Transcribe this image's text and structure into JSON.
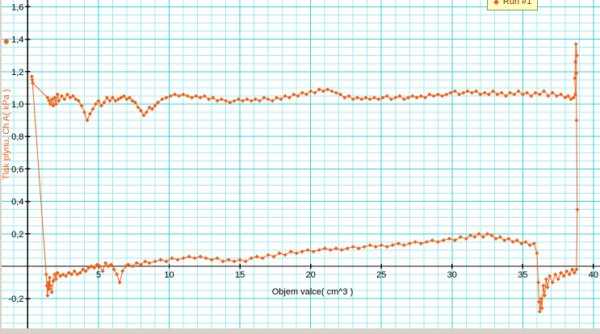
{
  "window": {
    "chrome_color": "#d6d2ca",
    "plot_bg": "#ffffff"
  },
  "icons": {
    "diamond": "◆"
  },
  "chart_data": {
    "type": "scatter",
    "title": "",
    "xlabel": "Objem valce( cm^3 )",
    "ylabel": "Tlak plynu, Ch A( kPa )",
    "xlim": [
      -1.85,
      40.46
    ],
    "ylim": [
      -0.383,
      1.642
    ],
    "grid": {
      "minor_color": "#9debee",
      "major_color": "#2bd2d8",
      "minor_x_step": 1,
      "major_x_step": 5,
      "minor_y_step": 0.05,
      "major_y_step": 0.2
    },
    "axis_color": "#000000",
    "tick_label_color": "#000000",
    "x_ticks": [
      {
        "v": 5,
        "label": "5"
      },
      {
        "v": 10,
        "label": "10"
      },
      {
        "v": 15,
        "label": "15"
      },
      {
        "v": 20,
        "label": "20"
      },
      {
        "v": 25,
        "label": "25"
      },
      {
        "v": 30,
        "label": "30"
      },
      {
        "v": 35,
        "label": "35"
      },
      {
        "v": 40,
        "label": "40"
      }
    ],
    "y_ticks": [
      {
        "v": 1.6,
        "label": "1,6"
      },
      {
        "v": 1.4,
        "label": "1,4"
      },
      {
        "v": 1.2,
        "label": "1,2"
      },
      {
        "v": 1.0,
        "label": "1,0"
      },
      {
        "v": 0.8,
        "label": "0,8"
      },
      {
        "v": 0.6,
        "label": "0,6"
      },
      {
        "v": 0.4,
        "label": "0,4"
      },
      {
        "v": 0.2,
        "label": "0,2"
      },
      {
        "v": -0.2,
        "label": "-0,2"
      }
    ],
    "legend": {
      "label": "Run #1",
      "bg": "#ffffc2",
      "border": "#8f8f55",
      "text_color": "#7a2e00"
    },
    "series": [
      {
        "name": "Run #1",
        "color": "#ee5f14",
        "marker": "diamond",
        "points": [
          [
            0.32,
            1.15
          ],
          [
            1.3,
            -0.05
          ],
          [
            1.35,
            -0.12
          ],
          [
            1.4,
            -0.18
          ],
          [
            1.45,
            -0.1
          ],
          [
            1.5,
            -0.14
          ],
          [
            1.55,
            -0.07
          ],
          [
            1.6,
            -0.12
          ],
          [
            1.7,
            -0.16
          ],
          [
            1.8,
            -0.09
          ],
          [
            1.9,
            -0.05
          ],
          [
            2.0,
            -0.08
          ],
          [
            2.1,
            -0.04
          ],
          [
            2.3,
            -0.06
          ],
          [
            2.5,
            -0.05
          ],
          [
            2.7,
            -0.06
          ],
          [
            2.9,
            -0.04
          ],
          [
            3.1,
            -0.05
          ],
          [
            3.3,
            -0.03
          ],
          [
            3.5,
            -0.05
          ],
          [
            3.7,
            -0.04
          ],
          [
            3.9,
            -0.02
          ],
          [
            4.1,
            -0.03
          ],
          [
            4.3,
            -0.01
          ],
          [
            4.5,
            0.0
          ],
          [
            4.7,
            -0.01
          ],
          [
            4.9,
            0.01
          ],
          [
            5.1,
            0.0
          ],
          [
            5.3,
            -0.03
          ],
          [
            5.5,
            0.02
          ],
          [
            5.7,
            0.0
          ],
          [
            5.9,
            0.01
          ],
          [
            6.1,
            -0.02
          ],
          [
            6.3,
            -0.05
          ],
          [
            6.5,
            -0.1
          ],
          [
            6.7,
            -0.03
          ],
          [
            6.9,
            0.0
          ],
          [
            7.1,
            0.01
          ],
          [
            7.4,
            0.0
          ],
          [
            7.7,
            0.02
          ],
          [
            8.0,
            0.01
          ],
          [
            8.3,
            0.03
          ],
          [
            8.6,
            0.02
          ],
          [
            9.0,
            0.03
          ],
          [
            9.4,
            0.04
          ],
          [
            9.8,
            0.03
          ],
          [
            10.2,
            0.05
          ],
          [
            10.6,
            0.04
          ],
          [
            11.0,
            0.05
          ],
          [
            11.4,
            0.06
          ],
          [
            11.8,
            0.05
          ],
          [
            12.2,
            0.06
          ],
          [
            12.6,
            0.05
          ],
          [
            13.0,
            0.04
          ],
          [
            13.4,
            0.05
          ],
          [
            13.8,
            0.03
          ],
          [
            14.2,
            0.04
          ],
          [
            14.6,
            0.03
          ],
          [
            15.0,
            0.04
          ],
          [
            15.4,
            0.03
          ],
          [
            15.8,
            0.05
          ],
          [
            16.2,
            0.06
          ],
          [
            16.6,
            0.05
          ],
          [
            17.0,
            0.07
          ],
          [
            17.4,
            0.06
          ],
          [
            17.8,
            0.08
          ],
          [
            18.2,
            0.07
          ],
          [
            18.6,
            0.09
          ],
          [
            19.0,
            0.08
          ],
          [
            19.4,
            0.09
          ],
          [
            19.8,
            0.1
          ],
          [
            20.2,
            0.09
          ],
          [
            20.6,
            0.1
          ],
          [
            21.0,
            0.11
          ],
          [
            21.4,
            0.1
          ],
          [
            21.8,
            0.11
          ],
          [
            22.2,
            0.1
          ],
          [
            22.6,
            0.11
          ],
          [
            23.0,
            0.12
          ],
          [
            23.4,
            0.11
          ],
          [
            23.8,
            0.12
          ],
          [
            24.2,
            0.13
          ],
          [
            24.6,
            0.12
          ],
          [
            25.0,
            0.13
          ],
          [
            25.4,
            0.12
          ],
          [
            25.8,
            0.13
          ],
          [
            26.2,
            0.14
          ],
          [
            26.6,
            0.13
          ],
          [
            27.0,
            0.14
          ],
          [
            27.4,
            0.15
          ],
          [
            27.8,
            0.14
          ],
          [
            28.2,
            0.15
          ],
          [
            28.6,
            0.16
          ],
          [
            29.0,
            0.15
          ],
          [
            29.4,
            0.16
          ],
          [
            29.8,
            0.17
          ],
          [
            30.2,
            0.16
          ],
          [
            30.6,
            0.18
          ],
          [
            31.0,
            0.17
          ],
          [
            31.3,
            0.19
          ],
          [
            31.6,
            0.18
          ],
          [
            31.9,
            0.2
          ],
          [
            32.2,
            0.18
          ],
          [
            32.5,
            0.2
          ],
          [
            32.8,
            0.19
          ],
          [
            33.1,
            0.17
          ],
          [
            33.4,
            0.18
          ],
          [
            33.7,
            0.16
          ],
          [
            34.0,
            0.17
          ],
          [
            34.3,
            0.15
          ],
          [
            34.6,
            0.16
          ],
          [
            34.9,
            0.14
          ],
          [
            35.2,
            0.15
          ],
          [
            35.5,
            0.13
          ],
          [
            35.8,
            0.14
          ],
          [
            36.0,
            0.08
          ],
          [
            36.1,
            -0.1
          ],
          [
            36.15,
            -0.22
          ],
          [
            36.2,
            -0.28
          ],
          [
            36.3,
            -0.2
          ],
          [
            36.35,
            -0.26
          ],
          [
            36.45,
            -0.12
          ],
          [
            36.55,
            -0.18
          ],
          [
            36.65,
            -0.08
          ],
          [
            36.75,
            -0.13
          ],
          [
            36.9,
            -0.06
          ],
          [
            37.1,
            -0.1
          ],
          [
            37.3,
            -0.05
          ],
          [
            37.5,
            -0.08
          ],
          [
            37.7,
            -0.04
          ],
          [
            37.9,
            -0.06
          ],
          [
            38.1,
            -0.03
          ],
          [
            38.3,
            -0.05
          ],
          [
            38.5,
            -0.02
          ],
          [
            38.65,
            -0.04
          ],
          [
            38.8,
            -0.02
          ],
          [
            38.85,
            0.35
          ],
          [
            38.8,
            0.9
          ],
          [
            38.78,
            1.19
          ],
          [
            38.82,
            1.3
          ],
          [
            38.76,
            1.37
          ],
          [
            38.72,
            1.26
          ],
          [
            38.68,
            1.16
          ],
          [
            38.72,
            1.06
          ],
          [
            38.6,
            1.04
          ],
          [
            38.4,
            1.03
          ],
          [
            38.2,
            1.05
          ],
          [
            38.0,
            1.04
          ],
          [
            37.7,
            1.06
          ],
          [
            37.4,
            1.05
          ],
          [
            37.1,
            1.07
          ],
          [
            36.8,
            1.05
          ],
          [
            36.5,
            1.08
          ],
          [
            36.2,
            1.06
          ],
          [
            35.9,
            1.07
          ],
          [
            35.6,
            1.05
          ],
          [
            35.3,
            1.07
          ],
          [
            35.0,
            1.06
          ],
          [
            34.7,
            1.08
          ],
          [
            34.4,
            1.06
          ],
          [
            34.1,
            1.07
          ],
          [
            33.8,
            1.05
          ],
          [
            33.5,
            1.07
          ],
          [
            33.2,
            1.06
          ],
          [
            32.9,
            1.08
          ],
          [
            32.6,
            1.06
          ],
          [
            32.3,
            1.07
          ],
          [
            32.0,
            1.06
          ],
          [
            31.7,
            1.08
          ],
          [
            31.4,
            1.07
          ],
          [
            31.1,
            1.08
          ],
          [
            30.8,
            1.07
          ],
          [
            30.5,
            1.06
          ],
          [
            30.2,
            1.08
          ],
          [
            29.9,
            1.07
          ],
          [
            29.6,
            1.06
          ],
          [
            29.3,
            1.05
          ],
          [
            29.0,
            1.06
          ],
          [
            28.7,
            1.05
          ],
          [
            28.4,
            1.06
          ],
          [
            28.1,
            1.04
          ],
          [
            27.8,
            1.05
          ],
          [
            27.5,
            1.04
          ],
          [
            27.2,
            1.05
          ],
          [
            26.9,
            1.04
          ],
          [
            26.6,
            1.03
          ],
          [
            26.3,
            1.05
          ],
          [
            26.0,
            1.04
          ],
          [
            25.7,
            1.03
          ],
          [
            25.4,
            1.05
          ],
          [
            25.1,
            1.04
          ],
          [
            24.8,
            1.03
          ],
          [
            24.5,
            1.04
          ],
          [
            24.2,
            1.03
          ],
          [
            23.9,
            1.04
          ],
          [
            23.6,
            1.03
          ],
          [
            23.3,
            1.04
          ],
          [
            23.0,
            1.03
          ],
          [
            22.7,
            1.05
          ],
          [
            22.4,
            1.04
          ],
          [
            22.1,
            1.06
          ],
          [
            21.8,
            1.07
          ],
          [
            21.5,
            1.08
          ],
          [
            21.2,
            1.09
          ],
          [
            20.9,
            1.08
          ],
          [
            20.6,
            1.09
          ],
          [
            20.3,
            1.07
          ],
          [
            20.0,
            1.08
          ],
          [
            19.7,
            1.06
          ],
          [
            19.4,
            1.07
          ],
          [
            19.1,
            1.05
          ],
          [
            18.8,
            1.06
          ],
          [
            18.5,
            1.04
          ],
          [
            18.2,
            1.05
          ],
          [
            17.9,
            1.03
          ],
          [
            17.6,
            1.04
          ],
          [
            17.3,
            1.02
          ],
          [
            17.0,
            1.03
          ],
          [
            16.7,
            1.04
          ],
          [
            16.4,
            1.02
          ],
          [
            16.1,
            1.03
          ],
          [
            15.8,
            1.02
          ],
          [
            15.5,
            1.03
          ],
          [
            15.2,
            1.02
          ],
          [
            14.9,
            1.03
          ],
          [
            14.6,
            1.02
          ],
          [
            14.3,
            1.01
          ],
          [
            14.0,
            1.02
          ],
          [
            13.7,
            1.03
          ],
          [
            13.4,
            1.02
          ],
          [
            13.1,
            1.04
          ],
          [
            12.8,
            1.03
          ],
          [
            12.5,
            1.05
          ],
          [
            12.2,
            1.04
          ],
          [
            11.9,
            1.05
          ],
          [
            11.6,
            1.04
          ],
          [
            11.3,
            1.05
          ],
          [
            11.0,
            1.06
          ],
          [
            10.7,
            1.05
          ],
          [
            10.4,
            1.06
          ],
          [
            10.1,
            1.05
          ],
          [
            9.8,
            1.04
          ],
          [
            9.5,
            1.03
          ],
          [
            9.2,
            1.01
          ],
          [
            9.0,
            0.99
          ],
          [
            8.8,
            0.97
          ],
          [
            8.6,
            0.98
          ],
          [
            8.4,
            0.95
          ],
          [
            8.2,
            0.93
          ],
          [
            8.0,
            0.96
          ],
          [
            7.8,
            0.98
          ],
          [
            7.6,
            1.01
          ],
          [
            7.4,
            1.02
          ],
          [
            7.2,
            1.04
          ],
          [
            7.0,
            1.03
          ],
          [
            6.8,
            1.05
          ],
          [
            6.6,
            1.04
          ],
          [
            6.4,
            1.03
          ],
          [
            6.2,
            1.02
          ],
          [
            6.0,
            1.04
          ],
          [
            5.8,
            1.02
          ],
          [
            5.6,
            1.04
          ],
          [
            5.4,
            1.01
          ],
          [
            5.2,
            0.99
          ],
          [
            5.0,
            1.02
          ],
          [
            4.8,
            1.0
          ],
          [
            4.6,
            0.97
          ],
          [
            4.4,
            0.94
          ],
          [
            4.2,
            0.9
          ],
          [
            4.0,
            0.95
          ],
          [
            3.8,
            0.99
          ],
          [
            3.6,
            1.02
          ],
          [
            3.4,
            1.03
          ],
          [
            3.2,
            1.05
          ],
          [
            3.0,
            1.04
          ],
          [
            2.8,
            1.06
          ],
          [
            2.6,
            1.03
          ],
          [
            2.4,
            1.05
          ],
          [
            2.2,
            1.02
          ],
          [
            2.1,
            1.06
          ],
          [
            2.0,
            1.0
          ],
          [
            1.9,
            1.04
          ],
          [
            1.8,
            0.99
          ],
          [
            1.7,
            1.03
          ],
          [
            1.6,
            1.0
          ],
          [
            1.5,
            1.02
          ],
          [
            1.4,
            1.04
          ],
          [
            0.35,
            1.13
          ],
          [
            0.28,
            1.17
          ]
        ]
      }
    ]
  }
}
